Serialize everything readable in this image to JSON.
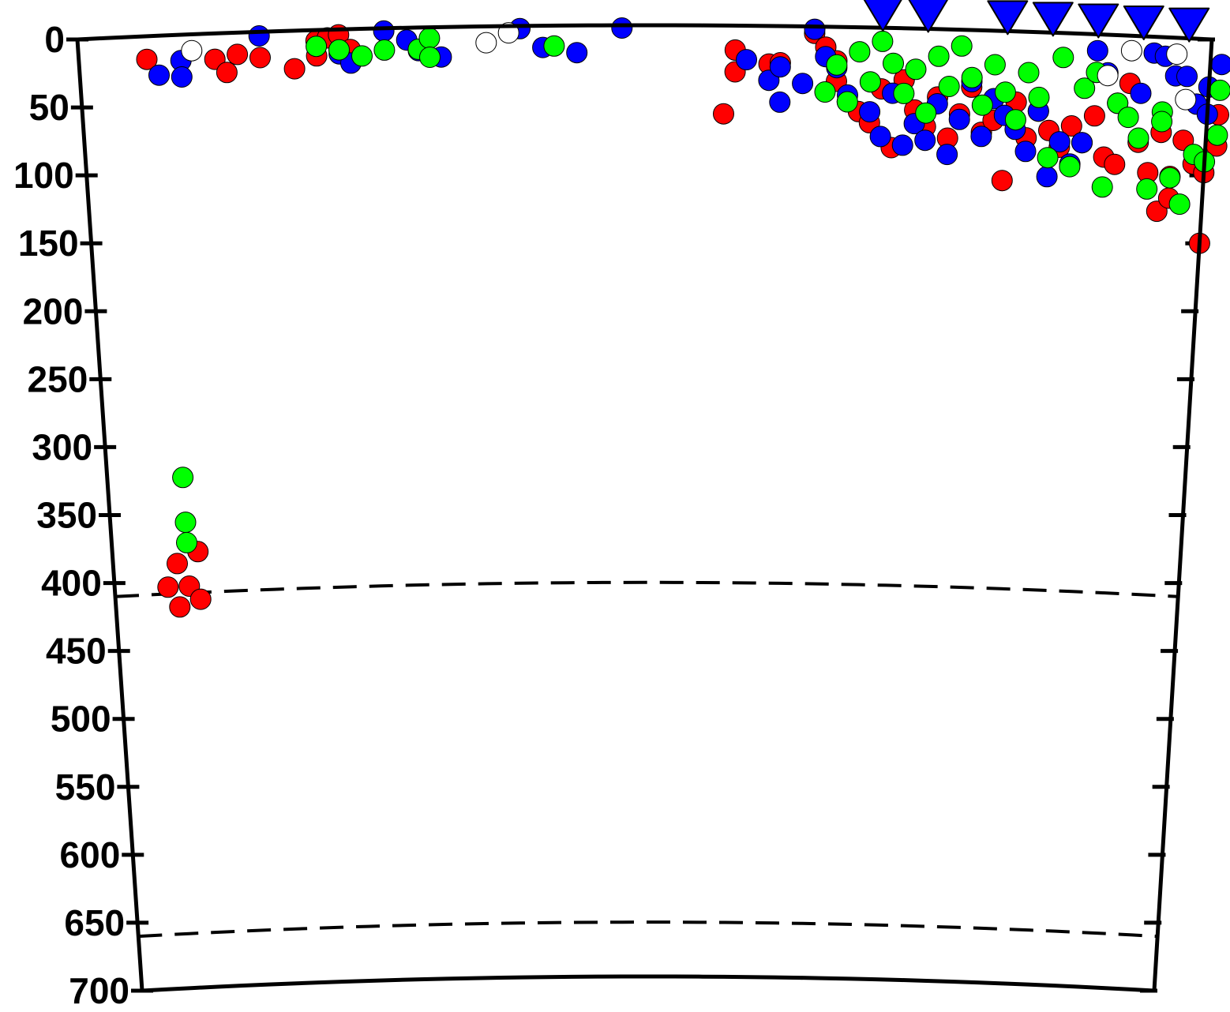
{
  "chart_data": {
    "type": "scatter",
    "title": "",
    "xlabel": "",
    "ylabel": "",
    "ylim": [
      0,
      700
    ],
    "yaxis_inverted": true,
    "ytick_labels": [
      "0",
      "50",
      "100",
      "150",
      "200",
      "250",
      "300",
      "350",
      "400",
      "450",
      "500",
      "550",
      "600",
      "650",
      "700"
    ],
    "ytick_values": [
      0,
      50,
      100,
      150,
      200,
      250,
      300,
      350,
      400,
      450,
      500,
      550,
      600,
      650,
      700
    ],
    "xlim": [
      0,
      100
    ],
    "grid": false,
    "legend": "none",
    "dashed_levels": [
      410,
      660
    ],
    "colors": {
      "red": "#ff0000",
      "blue": "#0000ff",
      "green": "#00ff00",
      "white": "#ffffff",
      "station": "#0000ff"
    },
    "stations_x": [
      71,
      75,
      82,
      86,
      90,
      94,
      98
    ],
    "series": [
      {
        "color": "red",
        "points": [
          [
            6,
            17
          ],
          [
            12,
            19
          ],
          [
            14,
            16
          ],
          [
            13,
            29
          ],
          [
            16,
            19
          ],
          [
            19,
            28
          ],
          [
            21,
            19
          ],
          [
            21,
            8
          ],
          [
            22,
            6
          ],
          [
            23,
            4
          ],
          [
            24,
            15
          ],
          [
            57,
            65
          ],
          [
            58,
            34
          ],
          [
            58,
            18
          ],
          [
            61,
            28
          ],
          [
            62,
            27
          ],
          [
            65,
            5
          ],
          [
            66,
            15
          ],
          [
            67,
            25
          ],
          [
            67,
            40
          ],
          [
            68,
            55
          ],
          [
            69,
            62
          ],
          [
            70,
            70
          ],
          [
            71,
            45
          ],
          [
            72,
            88
          ],
          [
            73,
            38
          ],
          [
            74,
            60
          ],
          [
            75,
            72
          ],
          [
            76,
            50
          ],
          [
            77,
            80
          ],
          [
            78,
            62
          ],
          [
            79,
            42
          ],
          [
            80,
            75
          ],
          [
            81,
            66
          ],
          [
            82,
            110
          ],
          [
            83,
            52
          ],
          [
            84,
            78
          ],
          [
            85,
            58
          ],
          [
            86,
            72
          ],
          [
            87,
            84
          ],
          [
            88,
            68
          ],
          [
            89,
            80
          ],
          [
            90,
            60
          ],
          [
            91,
            90
          ],
          [
            92,
            95
          ],
          [
            93,
            35
          ],
          [
            94,
            78
          ],
          [
            95,
            100
          ],
          [
            96,
            70
          ],
          [
            96,
            128
          ],
          [
            97,
            102
          ],
          [
            97,
            118
          ],
          [
            98,
            75
          ],
          [
            99,
            92
          ],
          [
            100,
            98
          ],
          [
            100,
            150
          ],
          [
            101,
            55
          ],
          [
            101,
            78
          ],
          [
            5,
            405
          ],
          [
            6,
            420
          ],
          [
            6,
            388
          ],
          [
            7,
            405
          ],
          [
            8,
            380
          ],
          [
            8,
            415
          ]
        ]
      },
      {
        "color": "blue",
        "points": [
          [
            7,
            29
          ],
          [
            9,
            19
          ],
          [
            9,
            31
          ],
          [
            16,
            3
          ],
          [
            23,
            18
          ],
          [
            24,
            25
          ],
          [
            27,
            2
          ],
          [
            29,
            9
          ],
          [
            30,
            17
          ],
          [
            32,
            22
          ],
          [
            39,
            2
          ],
          [
            41,
            16
          ],
          [
            44,
            20
          ],
          [
            48,
            2
          ],
          [
            59,
            25
          ],
          [
            61,
            40
          ],
          [
            62,
            30
          ],
          [
            62,
            56
          ],
          [
            64,
            42
          ],
          [
            65,
            2
          ],
          [
            66,
            22
          ],
          [
            67,
            30
          ],
          [
            68,
            50
          ],
          [
            70,
            62
          ],
          [
            71,
            80
          ],
          [
            72,
            48
          ],
          [
            73,
            86
          ],
          [
            74,
            70
          ],
          [
            75,
            82
          ],
          [
            76,
            55
          ],
          [
            77,
            92
          ],
          [
            78,
            66
          ],
          [
            79,
            38
          ],
          [
            80,
            78
          ],
          [
            81,
            50
          ],
          [
            82,
            62
          ],
          [
            83,
            72
          ],
          [
            84,
            88
          ],
          [
            85,
            58
          ],
          [
            86,
            106
          ],
          [
            87,
            80
          ],
          [
            88,
            96
          ],
          [
            89,
            80
          ],
          [
            90,
            12
          ],
          [
            91,
            28
          ],
          [
            92,
            50
          ],
          [
            94,
            42
          ],
          [
            95,
            12
          ],
          [
            96,
            14
          ],
          [
            97,
            28
          ],
          [
            98,
            28
          ],
          [
            99,
            48
          ],
          [
            100,
            55
          ],
          [
            101,
            18
          ],
          [
            100,
            35
          ]
        ]
      },
      {
        "color": "green",
        "points": [
          [
            21,
            12
          ],
          [
            23,
            15
          ],
          [
            25,
            20
          ],
          [
            27,
            16
          ],
          [
            30,
            16
          ],
          [
            31,
            8
          ],
          [
            31,
            22
          ],
          [
            42,
            15
          ],
          [
            66,
            48
          ],
          [
            67,
            28
          ],
          [
            68,
            55
          ],
          [
            69,
            18
          ],
          [
            70,
            40
          ],
          [
            71,
            10
          ],
          [
            72,
            26
          ],
          [
            73,
            48
          ],
          [
            74,
            30
          ],
          [
            75,
            62
          ],
          [
            76,
            20
          ],
          [
            77,
            42
          ],
          [
            78,
            12
          ],
          [
            79,
            35
          ],
          [
            80,
            55
          ],
          [
            81,
            25
          ],
          [
            82,
            45
          ],
          [
            83,
            65
          ],
          [
            84,
            30
          ],
          [
            85,
            48
          ],
          [
            86,
            92
          ],
          [
            87,
            18
          ],
          [
            88,
            98
          ],
          [
            89,
            40
          ],
          [
            90,
            28
          ],
          [
            91,
            112
          ],
          [
            92,
            50
          ],
          [
            93,
            60
          ],
          [
            94,
            75
          ],
          [
            95,
            112
          ],
          [
            96,
            55
          ],
          [
            96,
            62
          ],
          [
            97,
            103
          ],
          [
            98,
            122
          ],
          [
            99,
            85
          ],
          [
            100,
            90
          ],
          [
            101,
            70
          ],
          [
            101,
            37
          ],
          [
            7,
            325
          ],
          [
            7,
            358
          ],
          [
            7,
            373
          ]
        ]
      },
      {
        "color": "white",
        "points": [
          [
            10,
            12
          ],
          [
            36,
            12
          ],
          [
            38,
            5
          ],
          [
            91,
            30
          ],
          [
            93,
            11
          ],
          [
            97,
            12
          ],
          [
            98,
            45
          ]
        ]
      }
    ]
  }
}
